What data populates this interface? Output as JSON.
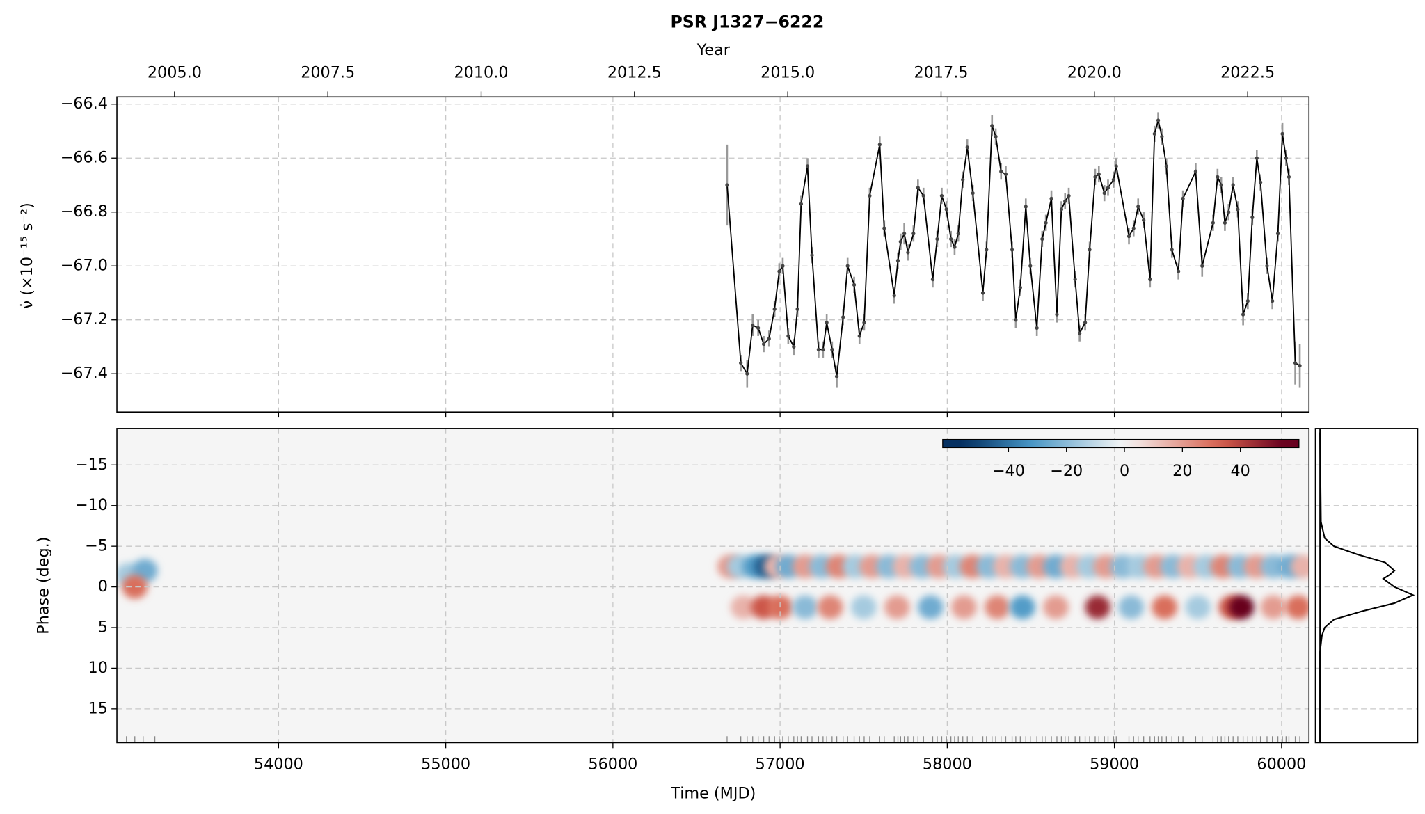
{
  "chart_data": {
    "type": "timing",
    "title": "PSR J1327−6222",
    "x2_label": "Year",
    "xlabel": "Time (MJD)",
    "ylabel": "ν̇ (×10⁻¹⁵ s⁻²)",
    "ylabel2": "Phase (deg.)",
    "grid": true,
    "xlim": [
      53033,
      60164
    ],
    "xticks": [
      54000,
      55000,
      56000,
      57000,
      58000,
      59000,
      60000
    ],
    "x2lim": [
      2004.06,
      2023.5
    ],
    "x2ticks": [
      {
        "value": 2005,
        "label": "2005.0"
      },
      {
        "value": 2007.5,
        "label": "2007.5"
      },
      {
        "value": 2010,
        "label": "2010.0"
      },
      {
        "value": 2012.5,
        "label": "2012.5"
      },
      {
        "value": 2015,
        "label": "2015.0"
      },
      {
        "value": 2017.5,
        "label": "2017.5"
      },
      {
        "value": 2020,
        "label": "2020.0"
      },
      {
        "value": 2022.5,
        "label": "2022.5"
      }
    ],
    "ylim": [
      -67.542,
      -66.373
    ],
    "yticks": [
      {
        "value": -66.4,
        "label": "−66.4"
      },
      {
        "value": -66.6,
        "label": "−66.6"
      },
      {
        "value": -66.8,
        "label": "−66.8"
      },
      {
        "value": -67.0,
        "label": "−67.0"
      },
      {
        "value": -67.2,
        "label": "−67.2"
      },
      {
        "value": -67.4,
        "label": "−67.4"
      }
    ],
    "series": [
      {
        "color": "#000000",
        "error_color": "#999999",
        "x": [
          56683,
          56765,
          56803,
          56836,
          56869,
          56902,
          56934,
          56967,
          56995,
          57016,
          57049,
          57082,
          57104,
          57126,
          57164,
          57191,
          57230,
          57257,
          57279,
          57311,
          57339,
          57377,
          57404,
          57443,
          57475,
          57503,
          57536,
          57596,
          57623,
          57683,
          57705,
          57721,
          57743,
          57765,
          57798,
          57825,
          57858,
          57913,
          57940,
          57967,
          57995,
          58022,
          58044,
          58066,
          58093,
          58120,
          58153,
          58213,
          58235,
          58268,
          58290,
          58322,
          58350,
          58388,
          58410,
          58437,
          58470,
          58497,
          58536,
          58568,
          58590,
          58623,
          58656,
          58683,
          58705,
          58727,
          58765,
          58792,
          58825,
          58852,
          58885,
          58907,
          58940,
          58962,
          58995,
          59011,
          59087,
          59115,
          59142,
          59175,
          59213,
          59240,
          59262,
          59284,
          59311,
          59344,
          59383,
          59410,
          59486,
          59525,
          59590,
          59617,
          59639,
          59661,
          59683,
          59710,
          59738,
          59770,
          59798,
          59825,
          59852,
          59874,
          59913,
          59945,
          59978,
          60005,
          60027,
          60044,
          60082,
          60109
        ],
        "values": [
          -66.7,
          -67.36,
          -67.4,
          -67.22,
          -67.23,
          -67.29,
          -67.27,
          -67.16,
          -67.02,
          -67.0,
          -67.26,
          -67.3,
          -67.16,
          -66.77,
          -66.63,
          -66.96,
          -67.31,
          -67.31,
          -67.21,
          -67.31,
          -67.41,
          -67.19,
          -67.0,
          -67.07,
          -67.26,
          -67.21,
          -66.74,
          -66.55,
          -66.86,
          -67.11,
          -66.98,
          -66.91,
          -66.88,
          -66.95,
          -66.88,
          -66.71,
          -66.74,
          -67.05,
          -66.9,
          -66.74,
          -66.79,
          -66.9,
          -66.93,
          -66.88,
          -66.68,
          -66.56,
          -66.73,
          -67.1,
          -66.94,
          -66.48,
          -66.52,
          -66.65,
          -66.66,
          -66.94,
          -67.2,
          -67.08,
          -66.78,
          -67.0,
          -67.23,
          -66.9,
          -66.84,
          -66.75,
          -67.18,
          -66.79,
          -66.76,
          -66.74,
          -67.05,
          -67.25,
          -67.21,
          -66.94,
          -66.67,
          -66.66,
          -66.73,
          -66.71,
          -66.68,
          -66.63,
          -66.89,
          -66.86,
          -66.78,
          -66.83,
          -67.05,
          -66.51,
          -66.46,
          -66.52,
          -66.63,
          -66.94,
          -67.02,
          -66.75,
          -66.65,
          -67.0,
          -66.84,
          -66.67,
          -66.7,
          -66.84,
          -66.8,
          -66.7,
          -66.79,
          -67.18,
          -67.13,
          -66.82,
          -66.6,
          -66.69,
          -67.0,
          -67.13,
          -66.88,
          -66.51,
          -66.6,
          -66.67,
          -67.36,
          -67.37
        ],
        "errors": [
          0.15,
          0.03,
          0.05,
          0.04,
          0.03,
          0.03,
          0.03,
          0.03,
          0.03,
          0.03,
          0.03,
          0.03,
          0.03,
          0.03,
          0.03,
          0.03,
          0.03,
          0.03,
          0.03,
          0.03,
          0.04,
          0.03,
          0.03,
          0.03,
          0.03,
          0.03,
          0.03,
          0.03,
          0.03,
          0.03,
          0.03,
          0.03,
          0.04,
          0.03,
          0.03,
          0.03,
          0.03,
          0.03,
          0.03,
          0.03,
          0.03,
          0.03,
          0.03,
          0.03,
          0.03,
          0.03,
          0.03,
          0.03,
          0.03,
          0.04,
          0.03,
          0.03,
          0.03,
          0.03,
          0.03,
          0.03,
          0.03,
          0.03,
          0.03,
          0.03,
          0.03,
          0.03,
          0.03,
          0.03,
          0.03,
          0.03,
          0.03,
          0.03,
          0.03,
          0.03,
          0.03,
          0.03,
          0.03,
          0.03,
          0.03,
          0.03,
          0.03,
          0.03,
          0.03,
          0.03,
          0.03,
          0.03,
          0.03,
          0.03,
          0.03,
          0.03,
          0.03,
          0.03,
          0.03,
          0.04,
          0.03,
          0.03,
          0.03,
          0.03,
          0.03,
          0.03,
          0.03,
          0.04,
          0.03,
          0.03,
          0.03,
          0.03,
          0.03,
          0.03,
          0.03,
          0.04,
          0.03,
          0.03,
          0.08,
          0.08
        ]
      }
    ],
    "phase_lim": [
      -19.49,
      19.16
    ],
    "phase_ticks": [
      {
        "value": -15,
        "label": "−15"
      },
      {
        "value": -10,
        "label": "−10"
      },
      {
        "value": -5,
        "label": "−5"
      },
      0,
      5,
      10,
      15
    ],
    "heatmap": {
      "x": [
        53100,
        53200,
        53140,
        56700,
        56760,
        56850,
        56920,
        56980,
        57050,
        57150,
        57250,
        57350,
        57450,
        57550,
        57650,
        57750,
        57850,
        57950,
        58050,
        58150,
        58250,
        58350,
        58450,
        58550,
        58650,
        58750,
        58850,
        58950,
        59050,
        59150,
        59250,
        59350,
        59450,
        59550,
        59650,
        59750,
        59850,
        59950,
        60050,
        60130,
        56780,
        56900,
        57000,
        57150,
        57300,
        57500,
        57700,
        57900,
        58100,
        58300,
        58450,
        58650,
        58900,
        59100,
        59300,
        59500,
        59700,
        59760,
        59950,
        60100
      ],
      "phase": [
        -1.5,
        -2,
        0,
        -2.5,
        -2.5,
        -2.5,
        -2.5,
        -2.5,
        -2.5,
        -2.5,
        -2.5,
        -2.5,
        -2.5,
        -2.5,
        -2.5,
        -2.5,
        -2.5,
        -2.5,
        -2.5,
        -2.5,
        -2.5,
        -2.5,
        -2.5,
        -2.5,
        -2.5,
        -2.5,
        -2.5,
        -2.5,
        -2.5,
        -2.5,
        -2.5,
        -2.5,
        -2.5,
        -2.5,
        -2.5,
        -2.5,
        -2.5,
        -2.5,
        -2.5,
        -2.5,
        2.5,
        2.5,
        2.5,
        2.5,
        2.5,
        2.5,
        2.5,
        2.5,
        2.5,
        2.5,
        2.5,
        2.5,
        2.5,
        2.5,
        2.5,
        2.5,
        2.5,
        2.5,
        2.5,
        2.5
      ],
      "values": [
        -15,
        -25,
        30,
        20,
        -15,
        -30,
        -45,
        15,
        -25,
        20,
        -20,
        25,
        -15,
        20,
        -20,
        15,
        -20,
        20,
        -15,
        25,
        -20,
        15,
        -20,
        20,
        -25,
        15,
        -15,
        20,
        -20,
        -15,
        20,
        -20,
        15,
        -15,
        25,
        -20,
        20,
        -20,
        -25,
        15,
        15,
        35,
        30,
        -20,
        25,
        -15,
        20,
        -25,
        20,
        25,
        -30,
        20,
        45,
        -20,
        30,
        -15,
        35,
        55,
        20,
        30
      ]
    },
    "clim": [
      -62.7,
      60.2
    ],
    "cticks": [
      {
        "value": -40,
        "label": "−40"
      },
      {
        "value": -20,
        "label": "−20"
      },
      0,
      20,
      40
    ],
    "rug_x": [
      53090,
      53140,
      53190,
      53260
    ],
    "profile": {
      "xlim": [
        -0.05,
        1.05
      ],
      "phase": [
        -19,
        -8,
        -6,
        -5,
        -4,
        -3,
        -2,
        -1.5,
        -1,
        0,
        1,
        2,
        3,
        4,
        5,
        6,
        8,
        19
      ],
      "values": [
        0,
        0.01,
        0.05,
        0.15,
        0.4,
        0.7,
        0.8,
        0.75,
        0.68,
        0.8,
        1,
        0.8,
        0.45,
        0.15,
        0.05,
        0.02,
        0,
        0
      ]
    }
  }
}
